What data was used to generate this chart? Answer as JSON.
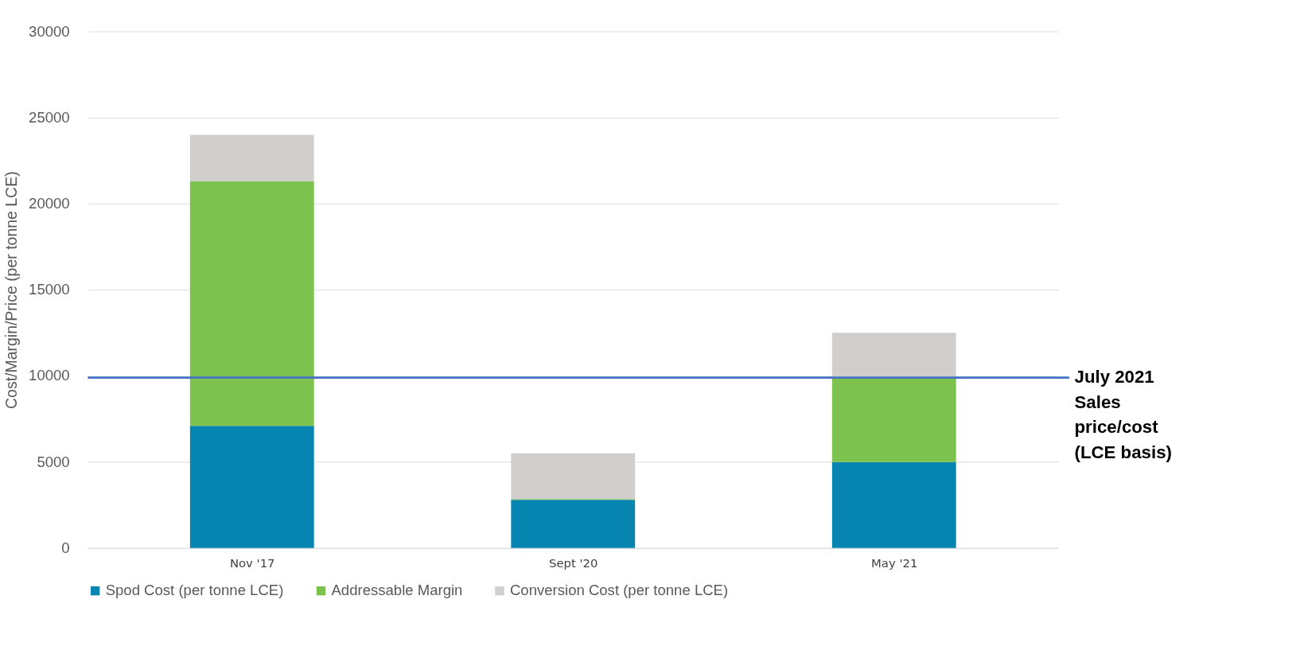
{
  "chart_data": {
    "type": "bar",
    "stacked": true,
    "ylabel": "Cost/Margin/Price (per tonne LCE)",
    "categories": [
      "Nov '17",
      "Sept '20",
      "May '21"
    ],
    "series": [
      {
        "name": "Spod Cost (per tonne LCE)",
        "color": "#0585b0",
        "values": [
          7100,
          2800,
          5000
        ]
      },
      {
        "name": "Addressable Margin",
        "color": "#7dc24f",
        "values": [
          14200,
          50,
          4900
        ]
      },
      {
        "name": "Conversion Cost (per tonne LCE)",
        "color": "#d0cfce",
        "values": [
          2700,
          2650,
          2600
        ]
      }
    ],
    "ylim": [
      0,
      30000
    ],
    "yticks": [
      0,
      5000,
      10000,
      15000,
      20000,
      25000,
      30000
    ],
    "grid": "y",
    "legend": "bottom",
    "ref_lines": [
      {
        "axis": "y",
        "value": 9900,
        "label": "July 2021 Sales price/cost (LCE basis)",
        "color": "#4472c4"
      }
    ]
  }
}
